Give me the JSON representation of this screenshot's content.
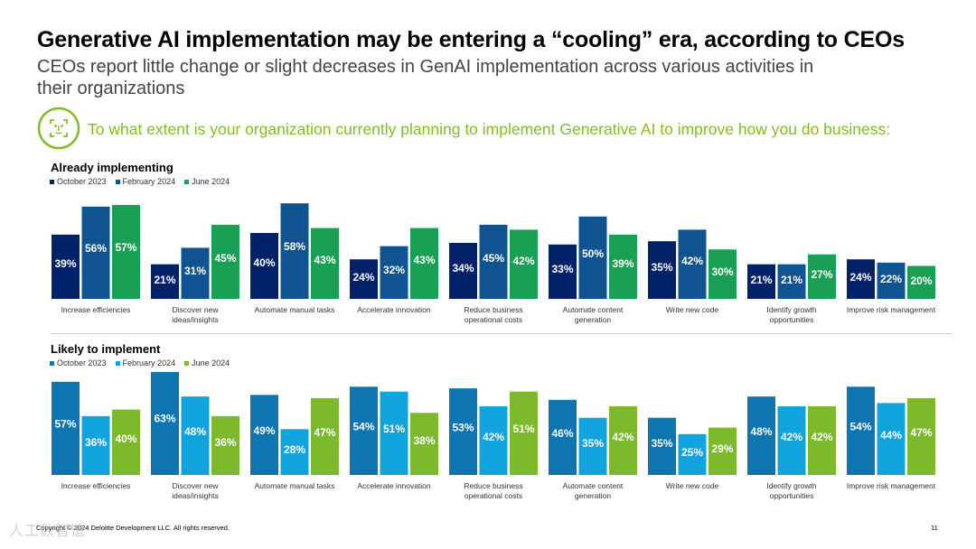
{
  "header": {
    "title": "Generative AI implementation may be entering a “cooling” era, according to CEOs",
    "subtitle": "CEOs report little change or slight decreases in GenAI implementation across various activities in their organizations",
    "question": "To what extent is your organization currently planning to implement Generative AI to improve how you do business:",
    "icon": "face-scan-icon"
  },
  "footer": {
    "copyright": "Copyright © 2024 Deloitte Development LLC. All rights reserved.",
    "page_number": "11",
    "watermark": "人工数智谊"
  },
  "chart_data": [
    {
      "type": "bar",
      "title": "Already implementing",
      "categories": [
        "Increase efficiencies",
        "Discover new ideas/insights",
        "Automate manual tasks",
        "Accelerate innovation",
        "Reduce business operational costs",
        "Automate content generation",
        "Write new code",
        "Identify growth opportunities",
        "Improve risk management"
      ],
      "category_lines": [
        [
          "Increase efficiencies"
        ],
        [
          "Discover new",
          "ideas/insights"
        ],
        [
          "Automate manual tasks"
        ],
        [
          "Accelerate innovation"
        ],
        [
          "Reduce business",
          "operational costs"
        ],
        [
          "Automate content",
          "generation"
        ],
        [
          "Write new code"
        ],
        [
          "Identify growth",
          "opportunities"
        ],
        [
          "Improve risk management"
        ]
      ],
      "series": [
        {
          "name": "October 2023",
          "color": "#012169",
          "values": [
            39,
            21,
            40,
            24,
            34,
            33,
            35,
            21,
            24
          ]
        },
        {
          "name": "February 2024",
          "color": "#0f5491",
          "values": [
            56,
            31,
            58,
            32,
            45,
            50,
            42,
            21,
            22
          ]
        },
        {
          "name": "June 2024",
          "color": "#1aa055",
          "values": [
            57,
            45,
            43,
            43,
            42,
            39,
            30,
            27,
            20
          ]
        }
      ],
      "ylim": [
        0,
        60
      ],
      "value_suffix": "%",
      "legend": "top-left"
    },
    {
      "type": "bar",
      "title": "Likely to implement",
      "categories": [
        "Increase efficiencies",
        "Discover new ideas/insights",
        "Automate manual tasks",
        "Accelerate innovation",
        "Reduce business operational costs",
        "Automate content generation",
        "Write new code",
        "Identify growth opportunities",
        "Improve risk management"
      ],
      "category_lines": [
        [
          "Increase efficiencies"
        ],
        [
          "Discover new",
          "ideas/insights"
        ],
        [
          "Automate manual tasks"
        ],
        [
          "Accelerate innovation"
        ],
        [
          "Reduce business",
          "operational costs"
        ],
        [
          "Automate content",
          "generation"
        ],
        [
          "Write new code"
        ],
        [
          "Identify growth",
          "opportunities"
        ],
        [
          "Improve risk management"
        ]
      ],
      "series": [
        {
          "name": "October 2023",
          "color": "#0e75b0",
          "values": [
            57,
            63,
            49,
            54,
            53,
            46,
            35,
            48,
            54
          ]
        },
        {
          "name": "February 2024",
          "color": "#11a3dd",
          "values": [
            36,
            48,
            28,
            51,
            42,
            35,
            25,
            42,
            44
          ]
        },
        {
          "name": "June 2024",
          "color": "#7cb92c",
          "values": [
            40,
            36,
            47,
            38,
            51,
            42,
            29,
            42,
            47
          ]
        }
      ],
      "ylim": [
        0,
        63
      ],
      "value_suffix": "%",
      "legend": "top-left"
    }
  ]
}
